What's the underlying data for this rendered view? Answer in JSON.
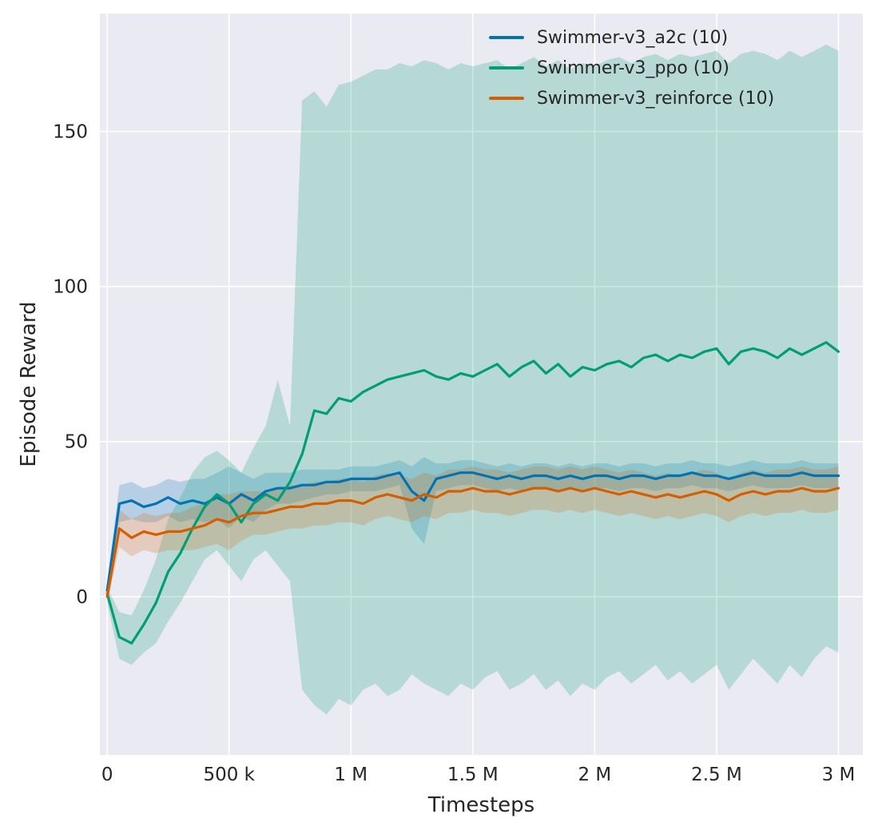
{
  "chart_data": {
    "type": "line",
    "title": "",
    "xlabel": "Timesteps",
    "ylabel": "Episode Reward",
    "xlim": [
      -30000,
      3100000
    ],
    "ylim": [
      -51,
      188
    ],
    "grid": true,
    "legend_position": "upper center-right, inside axes, no frame",
    "plot_background": "#eaeaf2",
    "grid_color": "#ffffff",
    "band_opacity": 0.22,
    "xticks": [
      {
        "value": 0,
        "label": "0"
      },
      {
        "value": 500000,
        "label": "500 k"
      },
      {
        "value": 1000000,
        "label": "1 M"
      },
      {
        "value": 1500000,
        "label": "1.5 M"
      },
      {
        "value": 2000000,
        "label": "2 M"
      },
      {
        "value": 2500000,
        "label": "2.5 M"
      },
      {
        "value": 3000000,
        "label": "3 M"
      }
    ],
    "yticks": [
      {
        "value": 0,
        "label": "0"
      },
      {
        "value": 50,
        "label": "50"
      },
      {
        "value": 100,
        "label": "100"
      },
      {
        "value": 150,
        "label": "150"
      }
    ],
    "x": [
      0,
      50000,
      100000,
      150000,
      200000,
      250000,
      300000,
      350000,
      400000,
      450000,
      500000,
      550000,
      600000,
      650000,
      700000,
      750000,
      800000,
      850000,
      900000,
      950000,
      1000000,
      1050000,
      1100000,
      1150000,
      1200000,
      1250000,
      1300000,
      1350000,
      1400000,
      1450000,
      1500000,
      1550000,
      1600000,
      1650000,
      1700000,
      1750000,
      1800000,
      1850000,
      1900000,
      1950000,
      2000000,
      2050000,
      2100000,
      2150000,
      2200000,
      2250000,
      2300000,
      2350000,
      2400000,
      2450000,
      2500000,
      2550000,
      2600000,
      2650000,
      2700000,
      2750000,
      2800000,
      2850000,
      2900000,
      2950000,
      3000000
    ],
    "series": [
      {
        "name": "Swimmer-v3_a2c",
        "label": "Swimmer-v3_a2c (10)",
        "color": "#0173b2",
        "mean": [
          2,
          30,
          31,
          29,
          30,
          32,
          30,
          31,
          30,
          32,
          30,
          33,
          31,
          34,
          35,
          35,
          36,
          36,
          37,
          37,
          38,
          38,
          38,
          39,
          40,
          34,
          31,
          38,
          39,
          40,
          40,
          39,
          38,
          39,
          38,
          39,
          39,
          38,
          39,
          38,
          39,
          39,
          38,
          39,
          39,
          38,
          39,
          39,
          40,
          39,
          39,
          38,
          39,
          40,
          39,
          39,
          39,
          40,
          39,
          39,
          39
        ],
        "lo": [
          0,
          24,
          25,
          24,
          24,
          26,
          24,
          25,
          24,
          25,
          22,
          26,
          24,
          28,
          30,
          30,
          31,
          32,
          33,
          33,
          34,
          34,
          34,
          35,
          36,
          22,
          17,
          34,
          35,
          36,
          36,
          35,
          34,
          35,
          34,
          35,
          35,
          34,
          35,
          34,
          35,
          35,
          34,
          35,
          35,
          34,
          35,
          35,
          36,
          35,
          35,
          34,
          35,
          36,
          35,
          35,
          35,
          36,
          35,
          35,
          35
        ],
        "hi": [
          4,
          36,
          37,
          35,
          36,
          38,
          37,
          38,
          38,
          40,
          42,
          40,
          38,
          40,
          40,
          40,
          41,
          41,
          41,
          41,
          42,
          42,
          42,
          43,
          44,
          42,
          45,
          43,
          43,
          44,
          44,
          43,
          42,
          43,
          42,
          43,
          43,
          42,
          43,
          42,
          43,
          43,
          42,
          43,
          43,
          42,
          43,
          43,
          44,
          43,
          43,
          42,
          43,
          44,
          43,
          43,
          43,
          44,
          43,
          43,
          43
        ]
      },
      {
        "name": "Swimmer-v3_ppo",
        "label": "Swimmer-v3_ppo (10)",
        "color": "#029e73",
        "mean": [
          1,
          -13,
          -15,
          -9,
          -2,
          8,
          14,
          22,
          29,
          33,
          30,
          24,
          30,
          33,
          31,
          37,
          46,
          60,
          59,
          64,
          63,
          66,
          68,
          70,
          71,
          72,
          73,
          71,
          70,
          72,
          71,
          73,
          75,
          71,
          74,
          76,
          72,
          75,
          71,
          74,
          73,
          75,
          76,
          74,
          77,
          78,
          76,
          78,
          77,
          79,
          80,
          75,
          79,
          80,
          79,
          77,
          80,
          78,
          80,
          82,
          79
        ],
        "lo": [
          -2,
          -20,
          -22,
          -18,
          -15,
          -8,
          -2,
          5,
          12,
          15,
          10,
          5,
          12,
          15,
          10,
          5,
          -30,
          -35,
          -38,
          -33,
          -35,
          -30,
          -28,
          -32,
          -30,
          -25,
          -28,
          -30,
          -32,
          -28,
          -30,
          -26,
          -24,
          -30,
          -28,
          -25,
          -30,
          -27,
          -32,
          -28,
          -30,
          -26,
          -24,
          -28,
          -25,
          -22,
          -27,
          -24,
          -28,
          -25,
          -22,
          -30,
          -25,
          -20,
          -24,
          -28,
          -22,
          -26,
          -20,
          -16,
          -18
        ],
        "hi": [
          3,
          -5,
          -6,
          2,
          12,
          25,
          32,
          40,
          45,
          47,
          44,
          40,
          48,
          55,
          70,
          55,
          160,
          163,
          158,
          165,
          166,
          168,
          170,
          170,
          172,
          171,
          173,
          172,
          170,
          172,
          171,
          172,
          173,
          170,
          172,
          174,
          171,
          173,
          170,
          172,
          171,
          173,
          174,
          172,
          174,
          175,
          173,
          175,
          174,
          175,
          176,
          172,
          175,
          176,
          175,
          173,
          176,
          174,
          176,
          178,
          176
        ]
      },
      {
        "name": "Swimmer-v3_reinforce",
        "label": "Swimmer-v3_reinforce (10)",
        "color": "#d55e00",
        "mean": [
          0,
          22,
          19,
          21,
          20,
          21,
          21,
          22,
          23,
          25,
          24,
          26,
          27,
          27,
          28,
          29,
          29,
          30,
          30,
          31,
          31,
          30,
          32,
          33,
          32,
          31,
          33,
          32,
          34,
          34,
          35,
          34,
          34,
          33,
          34,
          35,
          35,
          34,
          35,
          34,
          35,
          34,
          33,
          34,
          33,
          32,
          33,
          32,
          33,
          34,
          33,
          31,
          33,
          34,
          33,
          34,
          34,
          35,
          34,
          34,
          35
        ],
        "lo": [
          -2,
          16,
          13,
          15,
          14,
          15,
          15,
          15,
          16,
          17,
          15,
          18,
          20,
          20,
          21,
          22,
          22,
          23,
          23,
          24,
          24,
          23,
          25,
          26,
          25,
          24,
          26,
          25,
          27,
          27,
          28,
          27,
          27,
          26,
          27,
          28,
          28,
          27,
          28,
          27,
          28,
          27,
          26,
          27,
          26,
          25,
          26,
          25,
          26,
          27,
          26,
          24,
          26,
          27,
          26,
          27,
          27,
          28,
          27,
          27,
          28
        ],
        "hi": [
          2,
          28,
          25,
          27,
          26,
          27,
          27,
          29,
          30,
          33,
          33,
          34,
          34,
          34,
          35,
          36,
          36,
          37,
          37,
          38,
          38,
          37,
          39,
          40,
          39,
          38,
          40,
          39,
          41,
          41,
          42,
          41,
          41,
          40,
          41,
          42,
          42,
          41,
          42,
          41,
          42,
          41,
          40,
          41,
          40,
          39,
          40,
          39,
          40,
          41,
          40,
          38,
          40,
          41,
          40,
          41,
          41,
          42,
          41,
          41,
          42
        ]
      }
    ]
  }
}
